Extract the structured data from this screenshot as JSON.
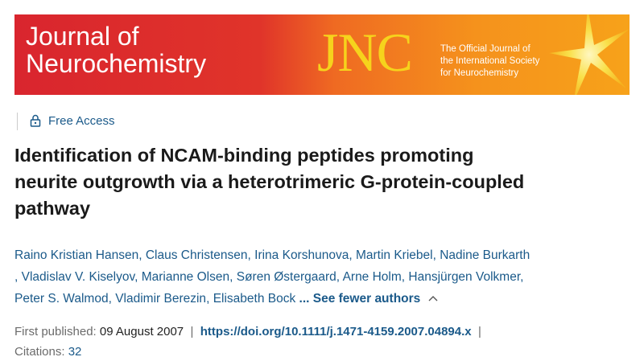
{
  "banner": {
    "journal_name_line1": "Journal of",
    "journal_name_line2": "Neurochemistry",
    "acronym": "JNC",
    "tagline_line1": "The Official Journal of",
    "tagline_line2": "the International Society",
    "tagline_line3": "for Neurochemistry"
  },
  "access": "Free Access",
  "article": {
    "title_line1": "Identification of NCAM-binding peptides promoting",
    "title_line2": "neurite outgrowth via a heterotrimeric G-protein-coupled",
    "title_line3": "pathway",
    "author_separator": ",",
    "authors": [
      "Raino Kristian Hansen",
      "Claus Christensen",
      "Irina Korshunova",
      "Martin Kriebel",
      "Nadine Burkarth",
      "Vladislav V. Kiselyov",
      "Marianne Olsen",
      "Søren Østergaard",
      "Arne Holm",
      "Hansjürgen Volkmer",
      "Peter S. Walmod",
      "Vladimir Berezin",
      "Elisabeth Bock"
    ],
    "see_fewer": "... See fewer authors",
    "first_published_label": "First published:",
    "first_published_date": "09 August 2007",
    "separator": "|",
    "doi": "https://doi.org/10.1111/j.1471-4159.2007.04894.x",
    "citations_label": "Citations:",
    "citations": "32"
  }
}
